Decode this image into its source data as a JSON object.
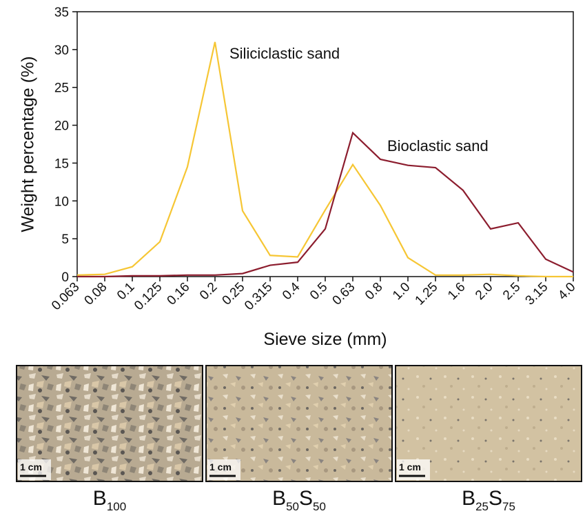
{
  "chart_data": {
    "type": "line",
    "xlabel": "Sieve size (mm)",
    "ylabel": "Weight percentage (%)",
    "categories": [
      "0.063",
      "0.08",
      "0.1",
      "0.125",
      "0.16",
      "0.2",
      "0.25",
      "0.315",
      "0.4",
      "0.5",
      "0.63",
      "0.8",
      "1.0",
      "1.25",
      "1.6",
      "2.0",
      "2.5",
      "3.15",
      "4.0"
    ],
    "series": [
      {
        "name": "Siliciclastic sand",
        "color": "#f6c634",
        "values": [
          0.2,
          0.3,
          1.3,
          4.6,
          14.5,
          31,
          8.7,
          2.8,
          2.6,
          8.8,
          14.8,
          9.4,
          2.5,
          0.2,
          0.2,
          0.3,
          0.1,
          0,
          0
        ]
      },
      {
        "name": "Bioclastic sand",
        "color": "#8c1d2e",
        "values": [
          0,
          0,
          0.1,
          0.1,
          0.2,
          0.2,
          0.4,
          1.5,
          1.9,
          6.3,
          19,
          15.5,
          14.7,
          14.4,
          11.4,
          6.3,
          7.1,
          2.3,
          0.6
        ]
      }
    ],
    "ylim": [
      0,
      35
    ],
    "yticks": [
      0,
      5,
      10,
      15,
      20,
      25,
      30,
      35
    ]
  },
  "panels": [
    {
      "label": [
        {
          "text": "B",
          "sub": "100"
        }
      ],
      "scale_bar": "1 cm"
    },
    {
      "label": [
        {
          "text": "B",
          "sub": "50"
        },
        {
          "text": "S",
          "sub": "50"
        }
      ],
      "scale_bar": "1 cm"
    },
    {
      "label": [
        {
          "text": "B",
          "sub": "25"
        },
        {
          "text": "S",
          "sub": "75"
        }
      ],
      "scale_bar": "1 cm"
    }
  ]
}
